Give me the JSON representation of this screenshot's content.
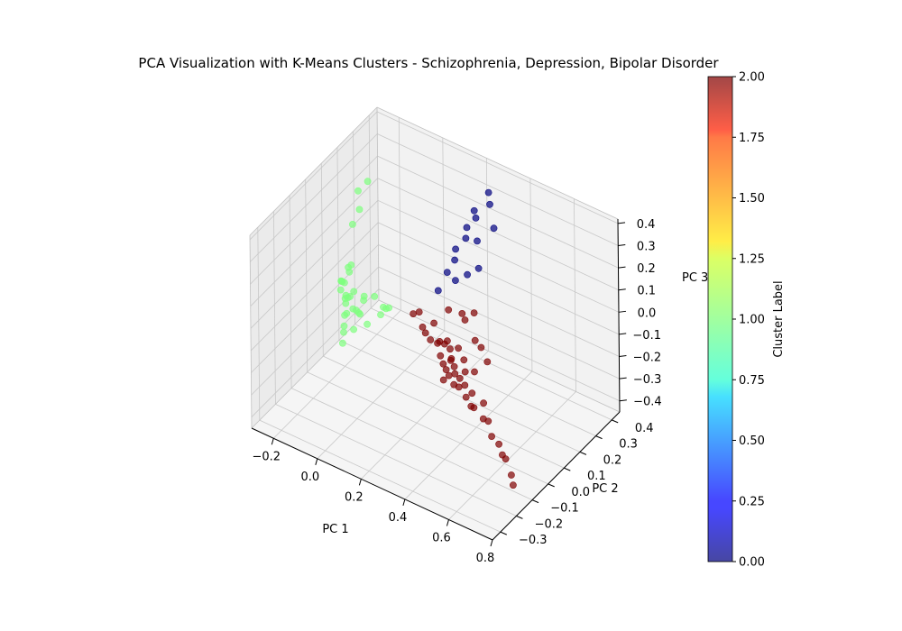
{
  "chart_data": {
    "type": "scatter",
    "title": "PCA Visualization with K-Means Clusters - Schizophrenia, Depression, Bipolar Disorder",
    "xlabel": "PC 1",
    "ylabel": "PC 2",
    "zlabel": "PC 3",
    "xlim": [
      -0.3,
      0.8
    ],
    "ylim": [
      -0.35,
      0.45
    ],
    "zlim": [
      -0.45,
      0.42
    ],
    "xticks": [
      -0.2,
      0.0,
      0.2,
      0.4,
      0.6,
      0.8
    ],
    "yticks": [
      -0.3,
      -0.2,
      -0.1,
      0.0,
      0.1,
      0.2,
      0.3,
      0.4
    ],
    "zticks": [
      -0.4,
      -0.3,
      -0.2,
      -0.1,
      0.0,
      0.1,
      0.2,
      0.3,
      0.4
    ],
    "xtick_labels": [
      "−0.2",
      "0.0",
      "0.2",
      "0.4",
      "0.6",
      "0.8"
    ],
    "ytick_labels": [
      "−0.3",
      "−0.2",
      "−0.1",
      "0.0",
      "0.1",
      "0.2",
      "0.3",
      "0.4"
    ],
    "ztick_labels": [
      "−0.4",
      "−0.3",
      "−0.2",
      "−0.1",
      "0.0",
      "0.1",
      "0.2",
      "0.3",
      "0.4"
    ],
    "grid": true,
    "colormap": "jet",
    "marker_alpha": 0.7,
    "colorbar": {
      "label": "Cluster Label",
      "range": [
        0,
        2
      ],
      "ticks": [
        0.0,
        0.25,
        0.5,
        0.75,
        1.0,
        1.25,
        1.5,
        1.75,
        2.0
      ],
      "tick_labels": [
        "0.00",
        "0.25",
        "0.50",
        "0.75",
        "1.00",
        "1.25",
        "1.50",
        "1.75",
        "2.00"
      ]
    },
    "series": [
      {
        "cluster": 0,
        "color": "#00007f",
        "x": [
          0.23,
          0.25,
          0.2,
          0.22,
          0.18,
          0.24,
          0.16,
          0.19,
          0.21,
          0.14,
          0.17,
          0.12,
          0.2,
          0.26,
          0.15
        ],
        "y": [
          0.42,
          0.4,
          0.38,
          0.36,
          0.35,
          0.34,
          0.3,
          0.33,
          0.31,
          0.28,
          0.29,
          0.25,
          0.37,
          0.41,
          0.32
        ],
        "z": [
          0.3,
          0.27,
          0.2,
          0.12,
          0.17,
          0.02,
          0.05,
          0.14,
          0.0,
          0.0,
          -0.03,
          -0.07,
          0.24,
          0.16,
          0.08
        ]
      },
      {
        "cluster": 1,
        "color": "#7fff7f",
        "x": [
          -0.28,
          -0.28,
          -0.27,
          -0.25,
          -0.24,
          -0.23,
          -0.22,
          -0.22,
          -0.21,
          -0.2,
          -0.2,
          -0.19,
          -0.18,
          -0.18,
          -0.17,
          -0.16,
          -0.15,
          -0.14,
          -0.13,
          -0.12,
          -0.11,
          -0.1,
          -0.09,
          -0.08,
          -0.06,
          -0.04,
          -0.02,
          0.0,
          0.02,
          0.04,
          -0.26,
          -0.19,
          -0.15,
          -0.1,
          -0.25,
          -0.21
        ],
        "y": [
          0.36,
          0.3,
          0.25,
          0.2,
          0.18,
          0.15,
          0.14,
          0.12,
          0.1,
          0.1,
          0.08,
          0.07,
          0.06,
          0.05,
          0.06,
          0.05,
          0.04,
          0.04,
          0.04,
          0.05,
          0.05,
          0.06,
          0.07,
          0.06,
          0.05,
          0.07,
          0.08,
          0.07,
          0.06,
          0.05,
          0.28,
          0.13,
          0.12,
          0.02,
          0.22,
          0.11
        ],
        "z": [
          0.16,
          0.16,
          0.05,
          -0.12,
          -0.08,
          -0.18,
          -0.25,
          -0.32,
          -0.35,
          -0.22,
          -0.05,
          -0.04,
          -0.03,
          -0.06,
          -0.03,
          -0.09,
          -0.1,
          -0.07,
          -0.06,
          -0.04,
          -0.12,
          -0.14,
          -0.08,
          -0.05,
          -0.16,
          -0.04,
          -0.12,
          -0.07,
          -0.06,
          -0.04,
          0.1,
          -0.01,
          -0.2,
          -0.18,
          -0.3,
          -0.28
        ]
      },
      {
        "cluster": 2,
        "color": "#7f0000",
        "x": [
          0.1,
          0.12,
          0.15,
          0.17,
          0.18,
          0.2,
          0.22,
          0.24,
          0.25,
          0.26,
          0.27,
          0.28,
          0.29,
          0.3,
          0.3,
          0.31,
          0.32,
          0.32,
          0.33,
          0.34,
          0.35,
          0.36,
          0.37,
          0.38,
          0.38,
          0.4,
          0.42,
          0.44,
          0.45,
          0.47,
          0.5,
          0.52,
          0.55,
          0.58,
          0.62,
          0.65,
          0.68,
          0.72,
          0.75,
          0.35,
          0.28,
          0.24,
          0.33,
          0.41,
          0.46,
          0.39,
          0.43,
          0.31
        ],
        "y": [
          0.12,
          0.13,
          0.11,
          0.1,
          0.14,
          0.09,
          0.12,
          0.08,
          0.11,
          0.07,
          0.1,
          0.06,
          0.09,
          0.08,
          0.05,
          0.07,
          0.04,
          0.1,
          0.06,
          0.05,
          0.03,
          0.08,
          0.04,
          0.02,
          0.06,
          0.03,
          0.01,
          0.02,
          0.0,
          -0.01,
          0.01,
          -0.02,
          -0.03,
          -0.05,
          -0.06,
          -0.08,
          -0.1,
          -0.12,
          -0.15,
          0.16,
          0.18,
          0.15,
          0.13,
          0.12,
          0.09,
          0.11,
          0.05,
          0.02
        ],
        "z": [
          -0.09,
          -0.08,
          -0.12,
          -0.13,
          -0.11,
          -0.14,
          -0.16,
          -0.13,
          -0.15,
          -0.17,
          -0.12,
          -0.19,
          -0.14,
          -0.18,
          -0.2,
          -0.16,
          -0.21,
          -0.13,
          -0.18,
          -0.2,
          -0.23,
          -0.15,
          -0.2,
          -0.22,
          -0.18,
          -0.21,
          -0.24,
          -0.22,
          -0.26,
          -0.25,
          -0.23,
          -0.27,
          -0.26,
          -0.3,
          -0.31,
          -0.33,
          -0.32,
          -0.36,
          -0.37,
          0.0,
          -0.05,
          -0.03,
          -0.02,
          -0.1,
          -0.12,
          -0.07,
          -0.15,
          -0.22
        ]
      }
    ]
  }
}
